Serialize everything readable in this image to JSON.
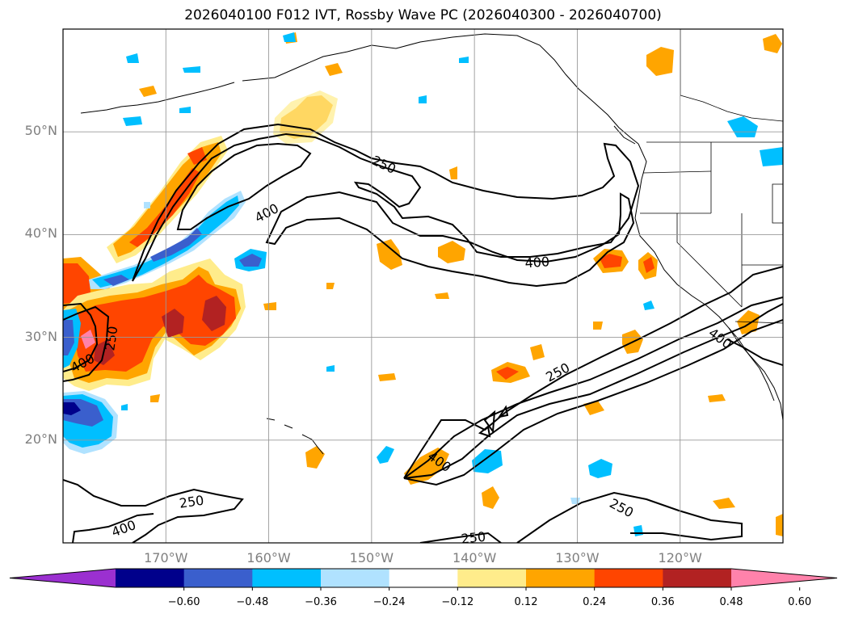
{
  "title": "2026040100 F012 IVT, Rossby Wave PC (2026040300 - 2026040700)",
  "map": {
    "projection": "plate-carree",
    "lon_range": [
      -180,
      -110
    ],
    "lat_range": [
      10,
      60
    ],
    "grid": true,
    "lat_labels": [
      {
        "lat": 50,
        "label": "50°N"
      },
      {
        "lat": 40,
        "label": "40°N"
      },
      {
        "lat": 30,
        "label": "30°N"
      },
      {
        "lat": 20,
        "label": "20°N"
      }
    ],
    "lon_labels": [
      {
        "lon": -170,
        "label": "170°W"
      },
      {
        "lon": -160,
        "label": "160°W"
      },
      {
        "lon": -150,
        "label": "150°W"
      },
      {
        "lon": -140,
        "label": "140°W"
      },
      {
        "lon": -130,
        "label": "130°W"
      },
      {
        "lon": -120,
        "label": "120°W"
      }
    ],
    "contour_labels": [
      {
        "text": "250",
        "lon": -148.8,
        "lat": 46.8,
        "rot": 25
      },
      {
        "text": "400",
        "lon": -160.2,
        "lat": 42.1,
        "rot": -28
      },
      {
        "text": "400",
        "lon": -133.9,
        "lat": 37.3,
        "rot": -4
      },
      {
        "text": "250",
        "lon": -131.9,
        "lat": 26.6,
        "rot": -28
      },
      {
        "text": "400",
        "lon": -178.1,
        "lat": 27.5,
        "rot": -28
      },
      {
        "text": "250",
        "lon": -175.3,
        "lat": 29.9,
        "rot": -82
      },
      {
        "text": "400",
        "lon": -116.1,
        "lat": 29.9,
        "rot": 36
      },
      {
        "text": "400",
        "lon": -143.4,
        "lat": 17.9,
        "rot": 36
      },
      {
        "text": "250",
        "lon": -125.7,
        "lat": 13.4,
        "rot": 28
      },
      {
        "text": "250",
        "lon": -167.5,
        "lat": 14.0,
        "rot": -8
      },
      {
        "text": "400",
        "lon": -174.1,
        "lat": 11.4,
        "rot": -20
      },
      {
        "text": "250",
        "lon": -140.1,
        "lat": 10.5,
        "rot": -6
      }
    ]
  },
  "colorbar": {
    "ticks": [
      "−0.60",
      "−0.48",
      "−0.36",
      "−0.24",
      "−0.12",
      "0.12",
      "0.24",
      "0.36",
      "0.48",
      "0.60"
    ],
    "colors": [
      "#9b30d0",
      "#00008b",
      "#3a5fcd",
      "#00bfff",
      "#b0e2ff",
      "#ffffff",
      "#ffec8b",
      "#ffa500",
      "#ff4500",
      "#b22222",
      "#ff82ab"
    ],
    "extend": "both"
  }
}
